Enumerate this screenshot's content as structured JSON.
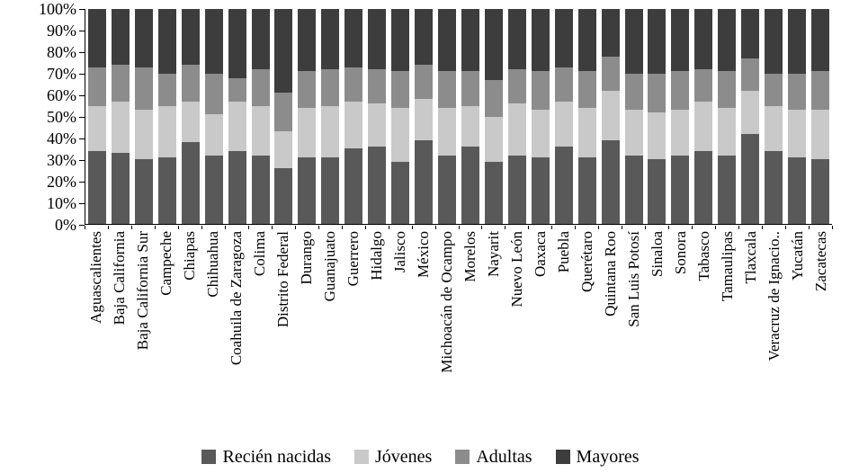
{
  "chart_data": {
    "type": "bar",
    "stacked": true,
    "percent_stacked": true,
    "title": "",
    "xlabel": "",
    "ylabel": "",
    "grid": false,
    "legend_position": "bottom",
    "y_axis": {
      "min": 0,
      "max": 100,
      "ticks": [
        "0%",
        "10%",
        "20%",
        "30%",
        "40%",
        "50%",
        "60%",
        "70%",
        "80%",
        "90%",
        "100%"
      ]
    },
    "categories": [
      "Aguascalientes",
      "Baja California",
      "Baja California Sur",
      "Campeche",
      "Chiapas",
      "Chihuahua",
      "Coahuila de Zaragoza",
      "Colima",
      "Distrito Federal",
      "Durango",
      "Guanajuato",
      "Guerrero",
      "Hidalgo",
      "Jalisco",
      "México",
      "Michoacán de Ocampo",
      "Morelos",
      "Nayarit",
      "Nuevo León",
      "Oaxaca",
      "Puebla",
      "Querétaro",
      "Quintana Roo",
      "San Luis Potosí",
      "Sinaloa",
      "Sonora",
      "Tabasco",
      "Tamaulipas",
      "Tlaxcala",
      "Veracruz de Ignacio..",
      "Yucatán",
      "Zacatecas"
    ],
    "series": [
      {
        "name": "Recién nacidas",
        "color": "#595959",
        "values": [
          34,
          33,
          30,
          31,
          38,
          32,
          34,
          32,
          26,
          31,
          31,
          35,
          36,
          29,
          39,
          32,
          36,
          29,
          32,
          31,
          36,
          31,
          39,
          32,
          30,
          32,
          34,
          32,
          42,
          34,
          31,
          30
        ]
      },
      {
        "name": "Jóvenes",
        "color": "#c9c9c9",
        "values": [
          21,
          24,
          23,
          24,
          19,
          19,
          23,
          23,
          17,
          23,
          24,
          22,
          20,
          25,
          19,
          22,
          19,
          21,
          24,
          22,
          21,
          23,
          23,
          21,
          22,
          21,
          23,
          22,
          20,
          21,
          22,
          23
        ]
      },
      {
        "name": "Adultas",
        "color": "#8c8c8c",
        "values": [
          18,
          17,
          20,
          15,
          17,
          19,
          11,
          17,
          18,
          17,
          17,
          16,
          16,
          17,
          16,
          17,
          16,
          17,
          16,
          18,
          16,
          17,
          16,
          17,
          18,
          18,
          15,
          17,
          15,
          15,
          17,
          18
        ]
      },
      {
        "name": "Mayores",
        "color": "#3d3d3d",
        "values": [
          27,
          26,
          27,
          30,
          26,
          30,
          32,
          28,
          39,
          29,
          28,
          27,
          28,
          29,
          26,
          29,
          29,
          33,
          28,
          29,
          27,
          29,
          22,
          30,
          30,
          29,
          28,
          29,
          23,
          30,
          30,
          29
        ]
      }
    ]
  }
}
